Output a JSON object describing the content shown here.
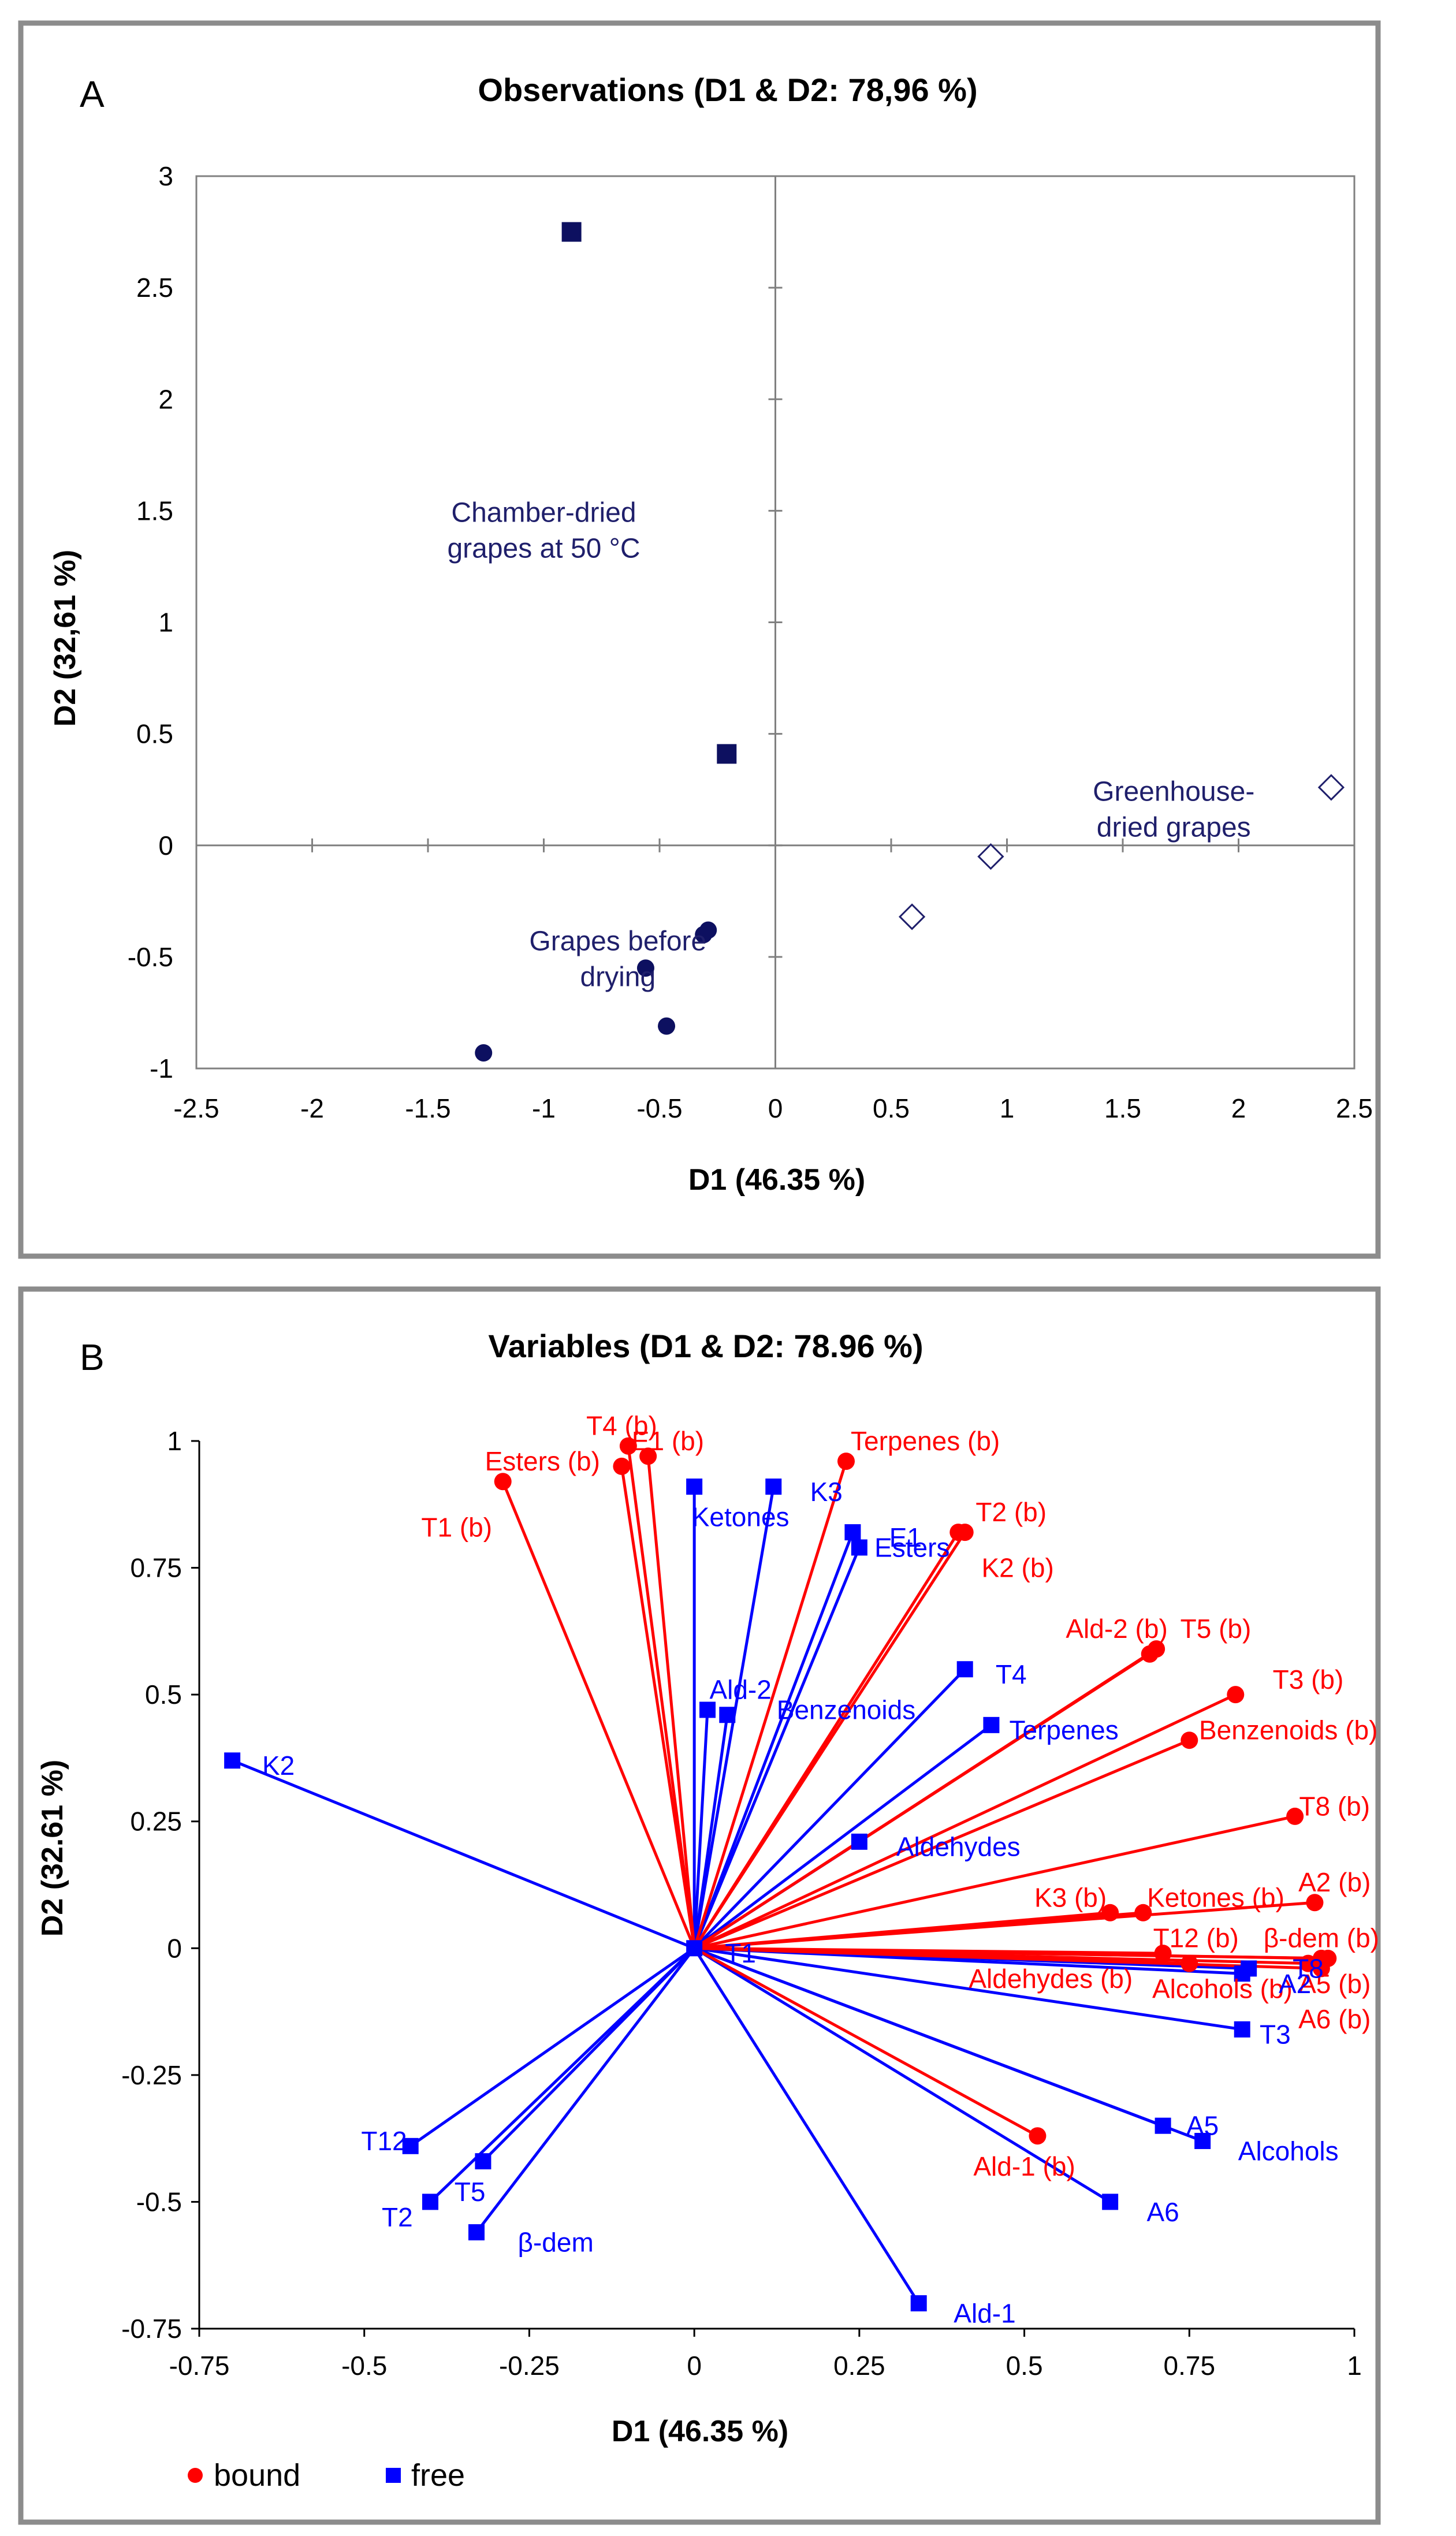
{
  "chart_data": [
    {
      "type": "scatter",
      "panel": "A",
      "title": "Observations (D1 & D2: 78,96 %)",
      "xlabel": "D1 (46.35 %)",
      "ylabel": "D2 (32,61 %)",
      "xlim": [
        -2.5,
        2.5
      ],
      "ylim": [
        -1,
        3
      ],
      "xticks": [
        "-2.5",
        "-2",
        "-1.5",
        "-1",
        "-0.5",
        "0",
        "0.5",
        "1",
        "1.5",
        "2",
        "2.5"
      ],
      "yticks": [
        "-1",
        "-0.5",
        "0",
        "0.5",
        "1",
        "1.5",
        "2",
        "2.5",
        "3"
      ],
      "series": [
        {
          "name": "Chamber-dried grapes at 50 °C",
          "marker": "filled-square",
          "points": [
            {
              "x": -0.88,
              "y": 2.75
            },
            {
              "x": -0.21,
              "y": 0.41
            }
          ]
        },
        {
          "name": "Grapes before drying",
          "marker": "filled-circle",
          "points": [
            {
              "x": -1.26,
              "y": -0.93
            },
            {
              "x": -0.56,
              "y": -0.55
            },
            {
              "x": -0.47,
              "y": -0.81
            },
            {
              "x": -0.31,
              "y": -0.4
            },
            {
              "x": -0.29,
              "y": -0.38
            }
          ]
        },
        {
          "name": "Greenhouse-dried grapes",
          "marker": "open-diamond",
          "points": [
            {
              "x": 0.59,
              "y": -0.32
            },
            {
              "x": 0.93,
              "y": -0.05
            },
            {
              "x": 2.4,
              "y": 0.26
            }
          ]
        }
      ],
      "annotations": [
        {
          "lines": [
            "Chamber-dried",
            "grapes at 50 °C"
          ],
          "x": -1.0,
          "y": 1.45
        },
        {
          "lines": [
            "Grapes before",
            "drying"
          ],
          "x": -0.68,
          "y": -0.47
        },
        {
          "lines": [
            "Greenhouse-",
            "dried grapes"
          ],
          "x": 1.72,
          "y": 0.2
        }
      ]
    },
    {
      "type": "biplot",
      "panel": "B",
      "title": "Variables (D1 & D2: 78.96 %)",
      "xlabel": "D1 (46.35 %)",
      "ylabel": "D2 (32.61 %)",
      "xlim": [
        -0.75,
        1
      ],
      "ylim": [
        -0.75,
        1
      ],
      "xticks": [
        "-0.75",
        "-0.5",
        "-0.25",
        "0",
        "0.25",
        "0.5",
        "0.75",
        "1"
      ],
      "yticks": [
        "-0.75",
        "-0.5",
        "-0.25",
        "0",
        "0.25",
        "0.5",
        "0.75",
        "1"
      ],
      "legend": [
        {
          "label": "bound",
          "color": "#ff0000",
          "marker": "circle"
        },
        {
          "label": "free",
          "color": "#0000ff",
          "marker": "square"
        }
      ],
      "series": [
        {
          "name": "bound",
          "color": "#ff0000",
          "marker": "circle",
          "points": [
            {
              "label": "T1 (b)",
              "x": -0.29,
              "y": 0.92,
              "lx": -0.36,
              "ly": 0.83,
              "anchor": "middle"
            },
            {
              "label": "Esters (b)",
              "x": -0.11,
              "y": 0.95,
              "lx": -0.23,
              "ly": 0.96,
              "anchor": "middle"
            },
            {
              "label": "T4 (b)",
              "x": -0.1,
              "y": 0.99,
              "lx": -0.11,
              "ly": 1.03,
              "anchor": "middle"
            },
            {
              "label": "E1 (b)",
              "x": -0.07,
              "y": 0.97,
              "lx": -0.04,
              "ly": 1.0,
              "anchor": "middle"
            },
            {
              "label": "Terpenes (b)",
              "x": 0.23,
              "y": 0.96,
              "lx": 0.35,
              "ly": 1.0,
              "anchor": "middle"
            },
            {
              "label": "T2 (b)",
              "x": 0.4,
              "y": 0.82,
              "lx": 0.48,
              "ly": 0.86,
              "anchor": "middle"
            },
            {
              "label": "K2 (b)",
              "x": 0.41,
              "y": 0.82,
              "lx": 0.49,
              "ly": 0.75,
              "anchor": "middle"
            },
            {
              "label": "Ald-2 (b)",
              "x": 0.69,
              "y": 0.58,
              "lx": 0.64,
              "ly": 0.63,
              "anchor": "middle"
            },
            {
              "label": "T5 (b)",
              "x": 0.7,
              "y": 0.59,
              "lx": 0.79,
              "ly": 0.63,
              "anchor": "middle"
            },
            {
              "label": "T3 (b)",
              "x": 0.82,
              "y": 0.5,
              "lx": 0.93,
              "ly": 0.53,
              "anchor": "middle"
            },
            {
              "label": "Benzenoids (b)",
              "x": 0.75,
              "y": 0.41,
              "lx": 0.9,
              "ly": 0.43,
              "anchor": "middle"
            },
            {
              "label": "T8 (b)",
              "x": 0.91,
              "y": 0.26,
              "lx": 0.97,
              "ly": 0.28,
              "anchor": "middle"
            },
            {
              "label": "A2 (b)",
              "x": 0.94,
              "y": 0.09,
              "lx": 0.97,
              "ly": 0.13,
              "anchor": "middle"
            },
            {
              "label": "K3 (b)",
              "x": 0.63,
              "y": 0.07,
              "lx": 0.57,
              "ly": 0.1,
              "anchor": "middle"
            },
            {
              "label": "Ketones (b)",
              "x": 0.68,
              "y": 0.07,
              "lx": 0.79,
              "ly": 0.1,
              "anchor": "middle"
            },
            {
              "label": "T12 (b)",
              "x": 0.71,
              "y": -0.01,
              "lx": 0.76,
              "ly": 0.02,
              "anchor": "middle"
            },
            {
              "label": "β-dem (b)",
              "x": 0.95,
              "y": -0.02,
              "lx": 0.95,
              "ly": 0.02,
              "anchor": "middle"
            },
            {
              "label": "Aldehydes (b)",
              "x": 0.75,
              "y": -0.03,
              "lx": 0.54,
              "ly": -0.06,
              "anchor": "middle"
            },
            {
              "label": "Alcohols (b)",
              "x": 0.95,
              "y": -0.04,
              "lx": 0.8,
              "ly": -0.08,
              "anchor": "middle"
            },
            {
              "label": "A5 (b)",
              "x": 0.96,
              "y": -0.02,
              "lx": 0.97,
              "ly": -0.07,
              "anchor": "middle"
            },
            {
              "label": "A6 (b)",
              "x": 0.93,
              "y": -0.03,
              "lx": 0.97,
              "ly": -0.14,
              "anchor": "middle"
            },
            {
              "label": "Ald-1 (b)",
              "x": 0.52,
              "y": -0.37,
              "lx": 0.5,
              "ly": -0.43,
              "anchor": "middle"
            }
          ]
        },
        {
          "name": "free",
          "color": "#0000ff",
          "marker": "square",
          "points": [
            {
              "label": "K2",
              "x": -0.7,
              "y": 0.37,
              "lx": -0.63,
              "ly": 0.36,
              "anchor": "middle"
            },
            {
              "label": "T12",
              "x": -0.43,
              "y": -0.39,
              "lx": -0.47,
              "ly": -0.38,
              "anchor": "middle"
            },
            {
              "label": "T5",
              "x": -0.32,
              "y": -0.42,
              "lx": -0.34,
              "ly": -0.48,
              "anchor": "middle"
            },
            {
              "label": "T2",
              "x": -0.4,
              "y": -0.5,
              "lx": -0.45,
              "ly": -0.53,
              "anchor": "middle"
            },
            {
              "label": "β-dem",
              "x": -0.33,
              "y": -0.56,
              "lx": -0.21,
              "ly": -0.58,
              "anchor": "middle"
            },
            {
              "label": "Ketones",
              "x": 0.0,
              "y": 0.91,
              "lx": 0.07,
              "ly": 0.85,
              "anchor": "middle"
            },
            {
              "label": "K3",
              "x": 0.12,
              "y": 0.91,
              "lx": 0.2,
              "ly": 0.9,
              "anchor": "middle"
            },
            {
              "label": "E1",
              "x": 0.24,
              "y": 0.82,
              "lx": 0.32,
              "ly": 0.81,
              "anchor": "middle"
            },
            {
              "label": "Esters",
              "x": 0.25,
              "y": 0.79,
              "lx": 0.33,
              "ly": 0.79,
              "anchor": "middle"
            },
            {
              "label": "T4",
              "x": 0.41,
              "y": 0.55,
              "lx": 0.48,
              "ly": 0.54,
              "anchor": "middle"
            },
            {
              "label": "Ald-2",
              "x": 0.02,
              "y": 0.47,
              "lx": 0.07,
              "ly": 0.51,
              "anchor": "middle"
            },
            {
              "label": "Benzenoids",
              "x": 0.05,
              "y": 0.46,
              "lx": 0.23,
              "ly": 0.47,
              "anchor": "middle"
            },
            {
              "label": "Terpenes",
              "x": 0.45,
              "y": 0.44,
              "lx": 0.56,
              "ly": 0.43,
              "anchor": "middle"
            },
            {
              "label": "Aldehydes",
              "x": 0.25,
              "y": 0.21,
              "lx": 0.4,
              "ly": 0.2,
              "anchor": "middle"
            },
            {
              "label": "T1",
              "x": 0.0,
              "y": 0.0,
              "lx": 0.07,
              "ly": -0.01,
              "anchor": "middle"
            },
            {
              "label": "T8",
              "x": 0.84,
              "y": -0.04,
              "lx": 0.93,
              "ly": -0.04,
              "anchor": "middle"
            },
            {
              "label": "A2",
              "x": 0.83,
              "y": -0.05,
              "lx": 0.91,
              "ly": -0.07,
              "anchor": "middle"
            },
            {
              "label": "T3",
              "x": 0.83,
              "y": -0.16,
              "lx": 0.88,
              "ly": -0.17,
              "anchor": "middle"
            },
            {
              "label": "A5",
              "x": 0.71,
              "y": -0.35,
              "lx": 0.77,
              "ly": -0.35,
              "anchor": "middle"
            },
            {
              "label": "Alcohols",
              "x": 0.77,
              "y": -0.38,
              "lx": 0.9,
              "ly": -0.4,
              "anchor": "middle"
            },
            {
              "label": "A6",
              "x": 0.63,
              "y": -0.5,
              "lx": 0.71,
              "ly": -0.52,
              "anchor": "middle"
            },
            {
              "label": "Ald-1",
              "x": 0.34,
              "y": -0.7,
              "lx": 0.44,
              "ly": -0.72,
              "anchor": "middle"
            }
          ]
        }
      ]
    }
  ]
}
